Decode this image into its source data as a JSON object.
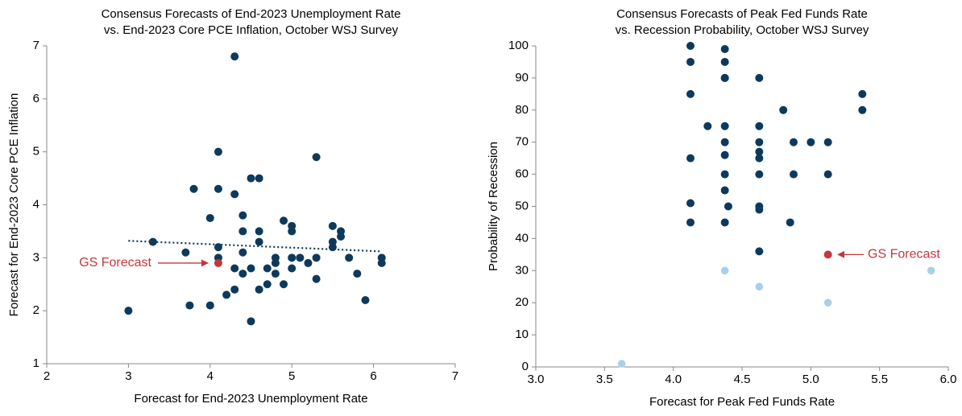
{
  "chart_data": [
    {
      "type": "scatter",
      "title": [
        "Consensus Forecasts of End-2023 Unemployment Rate",
        "vs. End-2023 Core PCE Inflation, October WSJ Survey"
      ],
      "x_label": "Forecast for End-2023 Unemployment Rate",
      "y_label": "Forecast for End-2023 Core PCE Inflation",
      "xlim": [
        2,
        7
      ],
      "xticks": [
        2,
        3,
        4,
        5,
        6,
        7
      ],
      "ylim": [
        1,
        7
      ],
      "yticks": [
        1,
        2,
        3,
        4,
        5,
        6,
        7
      ],
      "series": [
        {
          "color": "#0d3a5c",
          "x": [
            3.0,
            3.3,
            3.7,
            3.75,
            3.8,
            4.0,
            4.0,
            4.1,
            4.1,
            4.1,
            4.1,
            4.2,
            4.3,
            4.3,
            4.3,
            4.3,
            4.4,
            4.4,
            4.4,
            4.4,
            4.5,
            4.5,
            4.5,
            4.6,
            4.6,
            4.6,
            4.6,
            4.7,
            4.7,
            4.8,
            4.8,
            4.8,
            4.9,
            4.9,
            5.0,
            5.0,
            5.0,
            5.0,
            5.1,
            5.2,
            5.3,
            5.3,
            5.3,
            5.5,
            5.5,
            5.5,
            5.6,
            5.6,
            5.7,
            5.8,
            5.9,
            6.1,
            6.1
          ],
          "values": [
            2.0,
            3.3,
            3.1,
            2.1,
            4.3,
            3.75,
            2.1,
            5.0,
            4.3,
            3.2,
            3.0,
            2.3,
            6.8,
            4.2,
            2.8,
            2.4,
            3.8,
            3.5,
            3.1,
            2.7,
            4.5,
            2.8,
            1.8,
            4.5,
            3.5,
            3.3,
            2.4,
            2.8,
            2.5,
            3.0,
            2.9,
            2.7,
            3.7,
            2.5,
            3.6,
            3.5,
            3.0,
            2.8,
            3.0,
            2.9,
            4.9,
            3.0,
            2.6,
            3.6,
            3.3,
            3.2,
            3.5,
            3.4,
            3.0,
            2.7,
            2.2,
            3.0,
            2.9
          ]
        },
        {
          "name": "GS Forecast",
          "color": "#c0393b",
          "x": [
            4.1
          ],
          "values": [
            2.9
          ]
        },
        {
          "color": "#0d3a5c",
          "line": "dotted",
          "x": [
            3.0,
            6.1
          ],
          "values": [
            3.32,
            3.12
          ]
        }
      ]
    },
    {
      "type": "scatter",
      "title": [
        "Consensus Forecasts of Peak Fed Funds Rate",
        "vs. Recession Probability, October WSJ Survey"
      ],
      "x_label": "Forecast for Peak Fed Funds Rate",
      "y_label": "Probability of Recession",
      "xlim": [
        3.0,
        6.0
      ],
      "xticks": [
        {
          "value": 3.0,
          "label": "3.0"
        },
        3.5,
        {
          "value": 4.0,
          "label": "4.0"
        },
        4.5,
        {
          "value": 5.0,
          "label": "5.0"
        },
        5.5,
        {
          "value": 6.0,
          "label": "6.0"
        }
      ],
      "ylim": [
        0,
        100
      ],
      "yticks": [
        0,
        10,
        20,
        30,
        40,
        50,
        60,
        70,
        80,
        90,
        100
      ],
      "series": [
        {
          "color": "#0d3a5c",
          "x": [
            4.125,
            4.125,
            4.125,
            4.125,
            4.125,
            4.125,
            4.25,
            4.375,
            4.375,
            4.375,
            4.375,
            4.375,
            4.375,
            4.375,
            4.375,
            4.375,
            4.375,
            4.4,
            4.625,
            4.625,
            4.625,
            4.625,
            4.625,
            4.625,
            4.625,
            4.625,
            4.625,
            4.8,
            4.85,
            4.875,
            4.875,
            5.0,
            5.125,
            5.125,
            5.375,
            5.375
          ],
          "values": [
            100,
            95,
            85,
            65,
            51,
            45,
            75,
            99,
            95,
            90,
            90,
            75,
            70,
            66,
            60,
            55,
            45,
            50,
            90,
            75,
            70,
            67,
            65,
            60,
            50,
            49,
            36,
            80,
            45,
            70,
            60,
            70,
            70,
            60,
            85,
            80
          ]
        },
        {
          "color": "#a9cfe9",
          "x": [
            3.625,
            4.375,
            4.625,
            5.125,
            5.875
          ],
          "values": [
            1,
            30,
            25,
            20,
            30
          ]
        },
        {
          "name": "GS Forecast",
          "color": "#c0393b",
          "x": [
            5.125
          ],
          "values": [
            35
          ]
        }
      ]
    }
  ]
}
